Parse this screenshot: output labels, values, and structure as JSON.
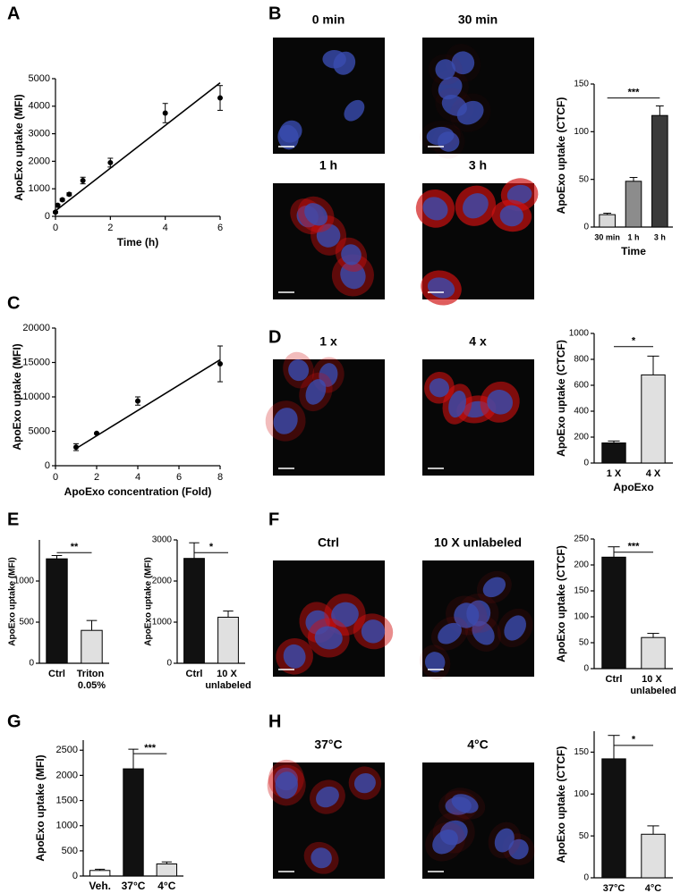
{
  "panel_labels": [
    "A",
    "B",
    "C",
    "D",
    "E",
    "F",
    "G",
    "H"
  ],
  "image_labels": [
    "0 min",
    "30 min",
    "1 h",
    "3 h",
    "1 x",
    "4 x",
    "Ctrl",
    "10 X unlabeled",
    "37°C",
    "4°C"
  ],
  "chart_data": [
    {
      "type": "scatter",
      "x": [
        0,
        0.08,
        0.25,
        0.5,
        1,
        2,
        4,
        6
      ],
      "values": [
        150,
        400,
        600,
        800,
        1300,
        1950,
        3750,
        4300
      ],
      "errors": [
        30,
        40,
        40,
        50,
        120,
        160,
        350,
        450
      ],
      "fit": {
        "x": [
          0,
          6
        ],
        "values": [
          200,
          4850
        ]
      },
      "color": "#000000",
      "xlim": [
        0,
        6
      ],
      "xticks": [
        0,
        2,
        4,
        6
      ],
      "ylim": [
        0,
        5000
      ],
      "yticks": [
        0,
        1000,
        2000,
        3000,
        4000,
        5000
      ],
      "xlabel": "Time (h)",
      "ylabel": "ApoExo uptake (MFI)"
    },
    {
      "type": "bar",
      "categories": [
        "30 min",
        "1 h",
        "3 h"
      ],
      "values": [
        13,
        48,
        117
      ],
      "errors": [
        1.5,
        4,
        10
      ],
      "colors": [
        "#d9d9d9",
        "#8c8c8c",
        "#3a3a3a"
      ],
      "ylim": [
        0,
        150
      ],
      "yticks": [
        0,
        50,
        100,
        150
      ],
      "xlabel": "Time",
      "ylabel": "ApoExo uptake (CTCF)",
      "significance": {
        "label": "***",
        "bars": [
          0,
          2
        ]
      }
    },
    {
      "type": "scatter",
      "x": [
        1,
        2,
        4,
        8
      ],
      "values": [
        2700,
        4700,
        9400,
        14800
      ],
      "errors": [
        500,
        100,
        600,
        2600
      ],
      "fit": {
        "x": [
          1,
          8
        ],
        "values": [
          2500,
          15400
        ]
      },
      "color": "#000000",
      "xlim": [
        0,
        8
      ],
      "xticks": [
        0,
        2,
        4,
        6,
        8
      ],
      "ylim": [
        0,
        20000
      ],
      "yticks": [
        0,
        5000,
        10000,
        15000,
        20000
      ],
      "xlabel": "ApoExo concentration (Fold)",
      "ylabel": "ApoExo uptake (MFI)"
    },
    {
      "type": "bar",
      "categories": [
        "1 X",
        "4 X"
      ],
      "values": [
        155,
        680
      ],
      "errors": [
        15,
        145
      ],
      "colors": [
        "#111111",
        "#e0e0e0"
      ],
      "ylim": [
        0,
        1000
      ],
      "yticks": [
        0,
        200,
        400,
        600,
        800,
        1000
      ],
      "xlabel": "ApoExo",
      "ylabel": "ApoExo uptake (CTCF)",
      "significance": {
        "label": "*",
        "bars": [
          0,
          1
        ]
      }
    },
    {
      "type": "bar",
      "categories": [
        "Ctrl",
        "Triton 0.05%"
      ],
      "values": [
        1270,
        400
      ],
      "errors": [
        40,
        120
      ],
      "colors": [
        "#111111",
        "#e0e0e0"
      ],
      "ylim": [
        0,
        1500
      ],
      "yticks": [
        0,
        500,
        1000
      ],
      "ylabel": "ApoExo uptake (MFI)",
      "significance": {
        "label": "**",
        "bars": [
          0,
          1
        ]
      }
    },
    {
      "type": "bar",
      "categories": [
        "Ctrl",
        "10 X unlabeled"
      ],
      "values": [
        2550,
        1120
      ],
      "errors": [
        380,
        150
      ],
      "colors": [
        "#111111",
        "#e0e0e0"
      ],
      "ylim": [
        0,
        3000
      ],
      "yticks": [
        0,
        1000,
        2000,
        3000
      ],
      "ylabel": "ApoExo uptake (MFI)",
      "significance": {
        "label": "*",
        "bars": [
          0,
          1
        ]
      }
    },
    {
      "type": "bar",
      "categories": [
        "Ctrl",
        "10 X unlabeled"
      ],
      "values": [
        215,
        60
      ],
      "errors": [
        20,
        8
      ],
      "colors": [
        "#111111",
        "#e0e0e0"
      ],
      "ylim": [
        0,
        250
      ],
      "yticks": [
        0,
        50,
        100,
        150,
        200,
        250
      ],
      "ylabel": "ApoExo uptake (CTCF)",
      "significance": {
        "label": "***",
        "bars": [
          0,
          1
        ]
      }
    },
    {
      "type": "bar",
      "categories": [
        "Veh.",
        "37°C",
        "4°C"
      ],
      "values": [
        110,
        2130,
        240
      ],
      "errors": [
        25,
        390,
        40
      ],
      "colors": [
        "#ffffff",
        "#111111",
        "#e0e0e0"
      ],
      "ylim": [
        0,
        2700
      ],
      "yticks": [
        0,
        500,
        1000,
        1500,
        2000,
        2500
      ],
      "ylabel": "ApoExo uptake (MFI)",
      "significance": {
        "label": "***",
        "bars": [
          1,
          2
        ]
      }
    },
    {
      "type": "bar",
      "categories": [
        "37°C",
        "4°C"
      ],
      "values": [
        142,
        52
      ],
      "errors": [
        28,
        10
      ],
      "colors": [
        "#111111",
        "#e0e0e0"
      ],
      "ylim": [
        0,
        175
      ],
      "yticks": [
        0,
        50,
        100,
        150
      ],
      "ylabel": "ApoExo uptake (CTCF)",
      "significance": {
        "label": "*",
        "bars": [
          0,
          1
        ]
      }
    }
  ]
}
